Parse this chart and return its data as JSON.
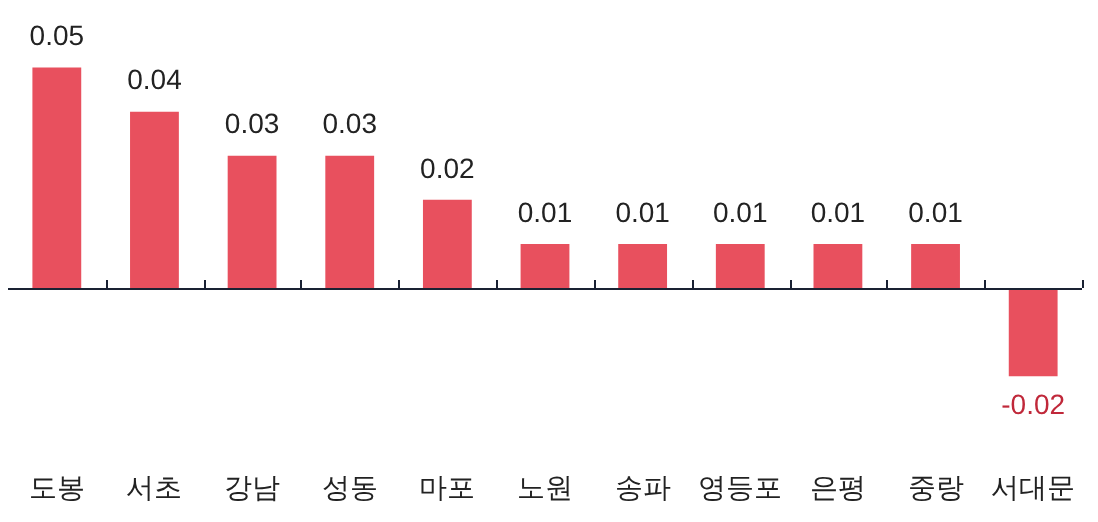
{
  "chart_data": {
    "type": "bar",
    "categories": [
      "도봉",
      "서초",
      "강남",
      "성동",
      "마포",
      "노원",
      "송파",
      "영등포",
      "은평",
      "중랑",
      "서대문"
    ],
    "values": [
      0.05,
      0.04,
      0.03,
      0.03,
      0.02,
      0.01,
      0.01,
      0.01,
      0.01,
      0.01,
      -0.02
    ],
    "color": "#e8505e",
    "data_labels": true,
    "grid": false,
    "legend": false
  }
}
